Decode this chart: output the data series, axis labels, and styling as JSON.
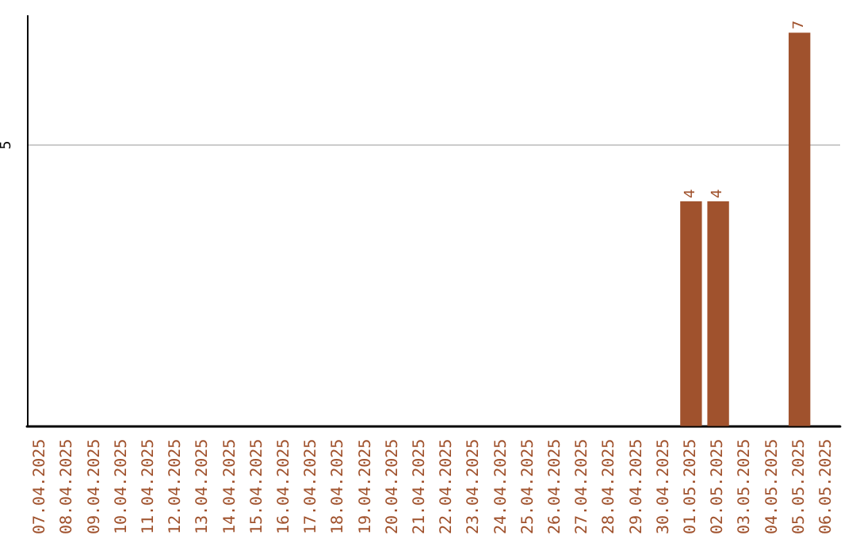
{
  "chart_data": {
    "type": "bar",
    "categories": [
      "07.04.2025",
      "08.04.2025",
      "09.04.2025",
      "10.04.2025",
      "11.04.2025",
      "12.04.2025",
      "13.04.2025",
      "14.04.2025",
      "15.04.2025",
      "16.04.2025",
      "17.04.2025",
      "18.04.2025",
      "19.04.2025",
      "20.04.2025",
      "21.04.2025",
      "22.04.2025",
      "23.04.2025",
      "24.04.2025",
      "25.04.2025",
      "26.04.2025",
      "27.04.2025",
      "28.04.2025",
      "29.04.2025",
      "30.04.2025",
      "01.05.2025",
      "02.05.2025",
      "03.05.2025",
      "04.05.2025",
      "05.05.2025",
      "06.05.2025"
    ],
    "values": [
      null,
      null,
      null,
      null,
      null,
      null,
      null,
      null,
      null,
      null,
      null,
      null,
      null,
      null,
      null,
      null,
      null,
      null,
      null,
      null,
      null,
      null,
      null,
      null,
      4,
      4,
      null,
      null,
      7,
      null
    ],
    "color": "#a0522d",
    "ylim": [
      0,
      7.3
    ],
    "yticks": [
      5
    ],
    "grid": "y",
    "data_labels": true
  }
}
